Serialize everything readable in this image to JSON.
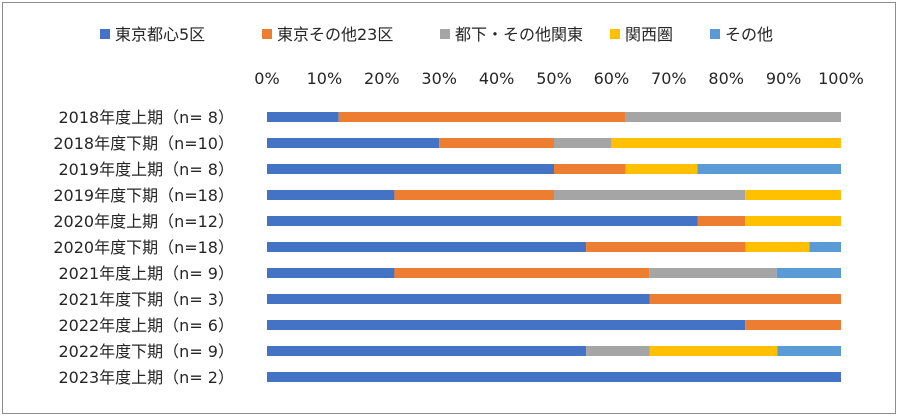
{
  "chart_data": {
    "type": "bar",
    "orientation": "horizontal",
    "stacked": true,
    "percent": true,
    "categories": [
      "2018年度上期（n=  8）",
      "2018年度下期（n=10）",
      "2019年度上期（n=  8）",
      "2019年度下期（n=18）",
      "2020年度上期（n=12）",
      "2020年度下期（n=18）",
      "2021年度上期（n=  9）",
      "2021年度下期（n=  3）",
      "2022年度上期（n=  6）",
      "2022年度下期（n=  9）",
      "2023年度上期（n=  2）"
    ],
    "series": [
      {
        "name": "東京都心5区",
        "color": "#4472C4",
        "values": [
          12.5,
          30.0,
          50.0,
          22.2,
          75.0,
          55.6,
          22.2,
          66.7,
          83.3,
          55.6,
          100.0
        ]
      },
      {
        "name": "東京その他23区",
        "color": "#ED7D31",
        "values": [
          50.0,
          20.0,
          12.5,
          27.8,
          8.3,
          27.8,
          44.4,
          33.3,
          16.7,
          0.0,
          0.0
        ]
      },
      {
        "name": "都下・その他関東",
        "color": "#A5A5A5",
        "values": [
          37.5,
          10.0,
          0.0,
          33.3,
          0.0,
          0.0,
          22.2,
          0.0,
          0.0,
          11.1,
          0.0
        ]
      },
      {
        "name": "関西圏",
        "color": "#FFC000",
        "values": [
          0.0,
          40.0,
          12.5,
          16.7,
          16.7,
          11.1,
          0.0,
          0.0,
          0.0,
          22.2,
          0.0
        ]
      },
      {
        "name": "その他",
        "color": "#5B9BD5",
        "values": [
          0.0,
          0.0,
          25.0,
          0.0,
          0.0,
          5.5,
          11.2,
          0.0,
          0.0,
          11.1,
          0.0
        ]
      }
    ],
    "xticks": [
      "0%",
      "10%",
      "20%",
      "30%",
      "40%",
      "50%",
      "60%",
      "70%",
      "80%",
      "90%",
      "100%"
    ],
    "xlim": [
      0,
      100
    ],
    "title": "",
    "xlabel": "",
    "ylabel": "",
    "legend_position": "top",
    "grid": false
  }
}
